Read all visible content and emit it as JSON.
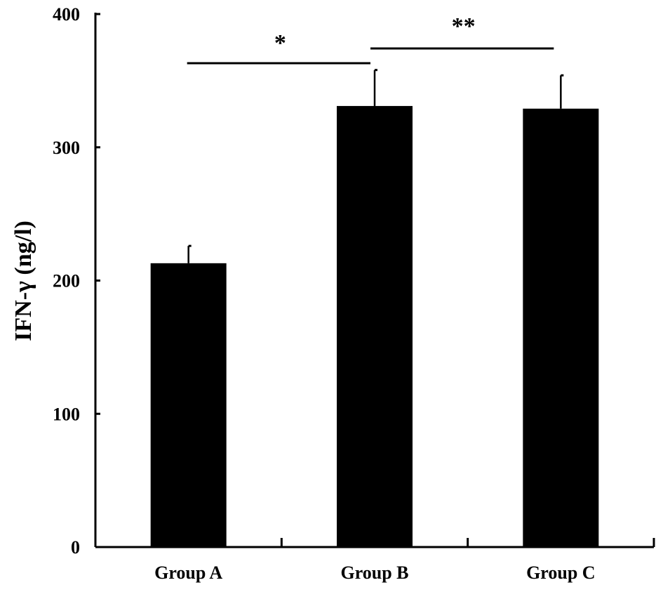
{
  "chart_data": {
    "type": "bar",
    "title": "",
    "xlabel": "",
    "ylabel": "IFN-γ (ng/l)",
    "ylim": [
      0,
      400
    ],
    "yticks": [
      0,
      100,
      200,
      300,
      400
    ],
    "categories": [
      "Group A",
      "Group B",
      "Group C"
    ],
    "values": [
      213,
      331,
      329
    ],
    "errors": [
      13,
      27,
      25
    ],
    "bar_color": "#000000",
    "grid": false,
    "legend": "none",
    "significance": [
      {
        "from": "Group A",
        "to": "Group B",
        "label": "*"
      },
      {
        "from": "Group B",
        "to": "Group C",
        "label": "**"
      }
    ]
  }
}
